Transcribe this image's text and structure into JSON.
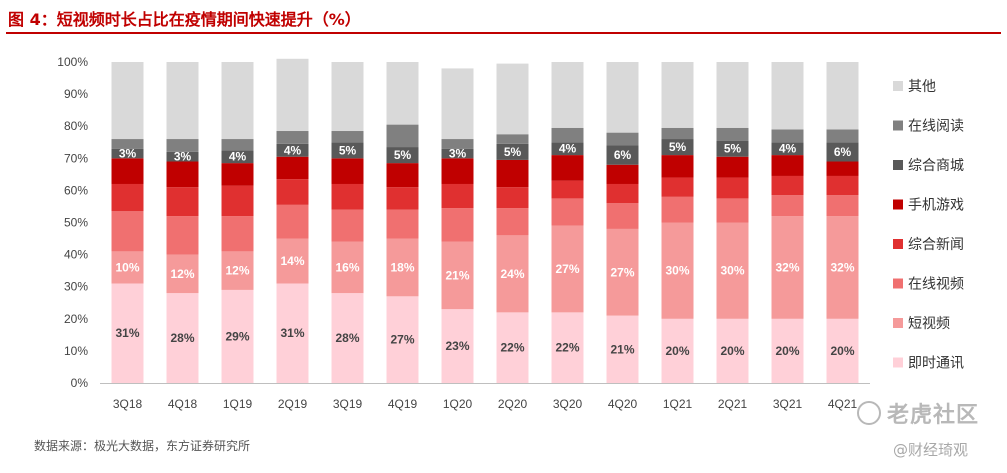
{
  "title": "图 4：短视频时长占比在疫情期间快速提升（%）",
  "source": "数据来源：极光大数据，东方证券研究所",
  "watermark": {
    "primary": "老虎社区",
    "secondary": "@财经琦观"
  },
  "chart_data": {
    "type": "bar",
    "stacked": true,
    "title": "短视频时长占比在疫情期间快速提升（%）",
    "xlabel": "",
    "ylabel": "",
    "ylim": [
      0,
      100
    ],
    "yticks": [
      "0%",
      "10%",
      "20%",
      "30%",
      "40%",
      "50%",
      "60%",
      "70%",
      "80%",
      "90%",
      "100%"
    ],
    "categories": [
      "3Q18",
      "4Q18",
      "1Q19",
      "2Q19",
      "3Q19",
      "4Q19",
      "1Q20",
      "2Q20",
      "3Q20",
      "4Q20",
      "1Q21",
      "2Q21",
      "3Q21",
      "4Q21"
    ],
    "legend_position": "right",
    "series": [
      {
        "name": "即时通讯",
        "color": "#ffd0d8",
        "label_color": "#444444",
        "values": [
          31,
          28,
          29,
          31,
          28,
          27,
          23,
          22,
          22,
          21,
          20,
          20,
          20,
          20
        ],
        "labels": [
          "31%",
          "28%",
          "29%",
          "31%",
          "28%",
          "27%",
          "23%",
          "22%",
          "22%",
          "21%",
          "20%",
          "20%",
          "20%",
          "20%"
        ]
      },
      {
        "name": "短视频",
        "color": "#f59a9a",
        "label_color": "#ffffff",
        "values": [
          10,
          12,
          12,
          14,
          16,
          18,
          21,
          24,
          27,
          27,
          30,
          30,
          32,
          32
        ],
        "labels": [
          "10%",
          "12%",
          "12%",
          "14%",
          "16%",
          "18%",
          "21%",
          "24%",
          "27%",
          "27%",
          "30%",
          "30%",
          "32%",
          "32%"
        ]
      },
      {
        "name": "在线视频",
        "color": "#f07070",
        "label_color": "#ffffff",
        "values": [
          12.5,
          12,
          11,
          10.5,
          10,
          9,
          10.5,
          8.5,
          8.5,
          8,
          8,
          7.5,
          6.5,
          6.5
        ]
      },
      {
        "name": "综合新闻",
        "color": "#e03030",
        "label_color": "#ffffff",
        "values": [
          8.5,
          9,
          9.5,
          8,
          8,
          7,
          7.5,
          6.5,
          5.5,
          6,
          6,
          6.5,
          6,
          6
        ]
      },
      {
        "name": "手机游戏",
        "color": "#c00000",
        "label_color": "#ffffff",
        "values": [
          8,
          8,
          7,
          7,
          8,
          7.5,
          8,
          8.5,
          8,
          6,
          7,
          6.5,
          6.5,
          4.5
        ]
      },
      {
        "name": "综合商城",
        "color": "#595959",
        "label_color": "#ffffff",
        "values": [
          3,
          3,
          4,
          4,
          5,
          5,
          3,
          5,
          4,
          6,
          5,
          5,
          4,
          6
        ],
        "labels": [
          "3%",
          "3%",
          "4%",
          "4%",
          "5%",
          "5%",
          "3%",
          "5%",
          "4%",
          "6%",
          "5%",
          "5%",
          "4%",
          "6%"
        ]
      },
      {
        "name": "在线阅读",
        "color": "#808080",
        "label_color": "#ffffff",
        "values": [
          3,
          4,
          3.5,
          4,
          3.5,
          7,
          3,
          3,
          4.5,
          4,
          3.5,
          4,
          4,
          4
        ]
      },
      {
        "name": "其他",
        "color": "#d9d9d9",
        "label_color": "#444444",
        "values": [
          24,
          24,
          24,
          22.5,
          21.5,
          19.5,
          22,
          22,
          20.5,
          22,
          20.5,
          20.5,
          21,
          21
        ]
      }
    ]
  }
}
